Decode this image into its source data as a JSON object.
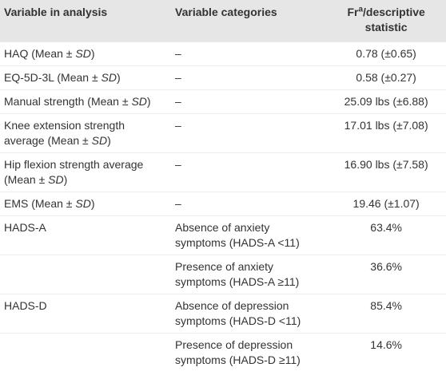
{
  "table": {
    "header": [
      "Variable in analysis",
      "Variable categories",
      {
        "pre": "Fr",
        "sup": "a",
        "post": "/descriptive statistic"
      }
    ],
    "rows": [
      [
        {
          "pre": "HAQ (Mean ± ",
          "em": "SD",
          "post": ")"
        },
        "–",
        "0.78 (±0.65)"
      ],
      [
        {
          "pre": "EQ-5D-3L (Mean ± ",
          "em": "SD",
          "post": ")"
        },
        "–",
        "0.58 (±0.27)"
      ],
      [
        {
          "pre": "Manual strength (Mean ± ",
          "em": "SD",
          "post": ")"
        },
        "–",
        "25.09 lbs (±6.88)"
      ],
      [
        {
          "pre": "Knee extension strength average (Mean ± ",
          "em": "SD",
          "post": ")"
        },
        "–",
        "17.01 lbs (±7.08)"
      ],
      [
        {
          "pre": "Hip flexion strength average (Mean ± ",
          "em": "SD",
          "post": ")"
        },
        "–",
        "16.90 lbs (±7.58)"
      ],
      [
        {
          "pre": "EMS (Mean ± ",
          "em": "SD",
          "post": ")"
        },
        "–",
        "19.46 (±1.07)"
      ],
      [
        "HADS-A",
        "Absence of anxiety symptoms (HADS-A <11)",
        "63.4%"
      ],
      [
        "",
        "Presence of anxiety symptoms (HADS-A ≥11)",
        "36.6%"
      ],
      [
        "HADS-D",
        "Absence of depression symptoms (HADS-D <11)",
        "85.4%"
      ],
      [
        "",
        "Presence of depression symptoms (HADS-D ≥11)",
        "14.6%"
      ]
    ]
  }
}
